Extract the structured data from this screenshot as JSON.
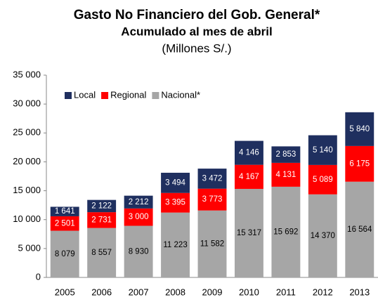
{
  "chart_data": {
    "type": "stacked_bar",
    "title": "Gasto No Financiero del Gob. General*",
    "subtitle": "Acumulado al mes de abril",
    "unit_label": "(Millones S/.)",
    "categories": [
      "2005",
      "2006",
      "2007",
      "2008",
      "2009",
      "2010",
      "2011",
      "2012",
      "2013"
    ],
    "series": [
      {
        "name": "Local",
        "color": "#1f2f5f",
        "values": [
          1641,
          2122,
          2212,
          3494,
          3472,
          4146,
          2853,
          5140,
          5840
        ],
        "value_labels": [
          "1 641",
          "2 122",
          "2 212",
          "3 494",
          "3 472",
          "4 146",
          "2 853",
          "5 140",
          "5 840"
        ]
      },
      {
        "name": "Regional",
        "color": "#ff0000",
        "values": [
          2501,
          2731,
          3000,
          3395,
          3773,
          4167,
          4131,
          5089,
          6175
        ],
        "value_labels": [
          "2 501",
          "2 731",
          "3 000",
          "3 395",
          "3 773",
          "4 167",
          "4 131",
          "5 089",
          "6 175"
        ]
      },
      {
        "name": "Nacional*",
        "color": "#a6a6a6",
        "values": [
          8079,
          8557,
          8930,
          11223,
          11582,
          15317,
          15692,
          14370,
          16564
        ],
        "value_labels": [
          "8 079",
          "8 557",
          "8 930",
          "11 223",
          "11 582",
          "15 317",
          "15 692",
          "14 370",
          "16 564"
        ]
      }
    ],
    "ylim": [
      0,
      35000
    ],
    "yticks": [
      0,
      {
        "value": 5000,
        "label": "5 000"
      },
      {
        "value": 10000,
        "label": "10 000"
      },
      {
        "value": 15000,
        "label": "15 000"
      },
      {
        "value": 20000,
        "label": "20 000"
      },
      {
        "value": 25000,
        "label": "25 000"
      },
      {
        "value": 30000,
        "label": "30 000"
      },
      {
        "value": 35000,
        "label": "35 000"
      }
    ],
    "grid": false,
    "legend": "top-left"
  }
}
